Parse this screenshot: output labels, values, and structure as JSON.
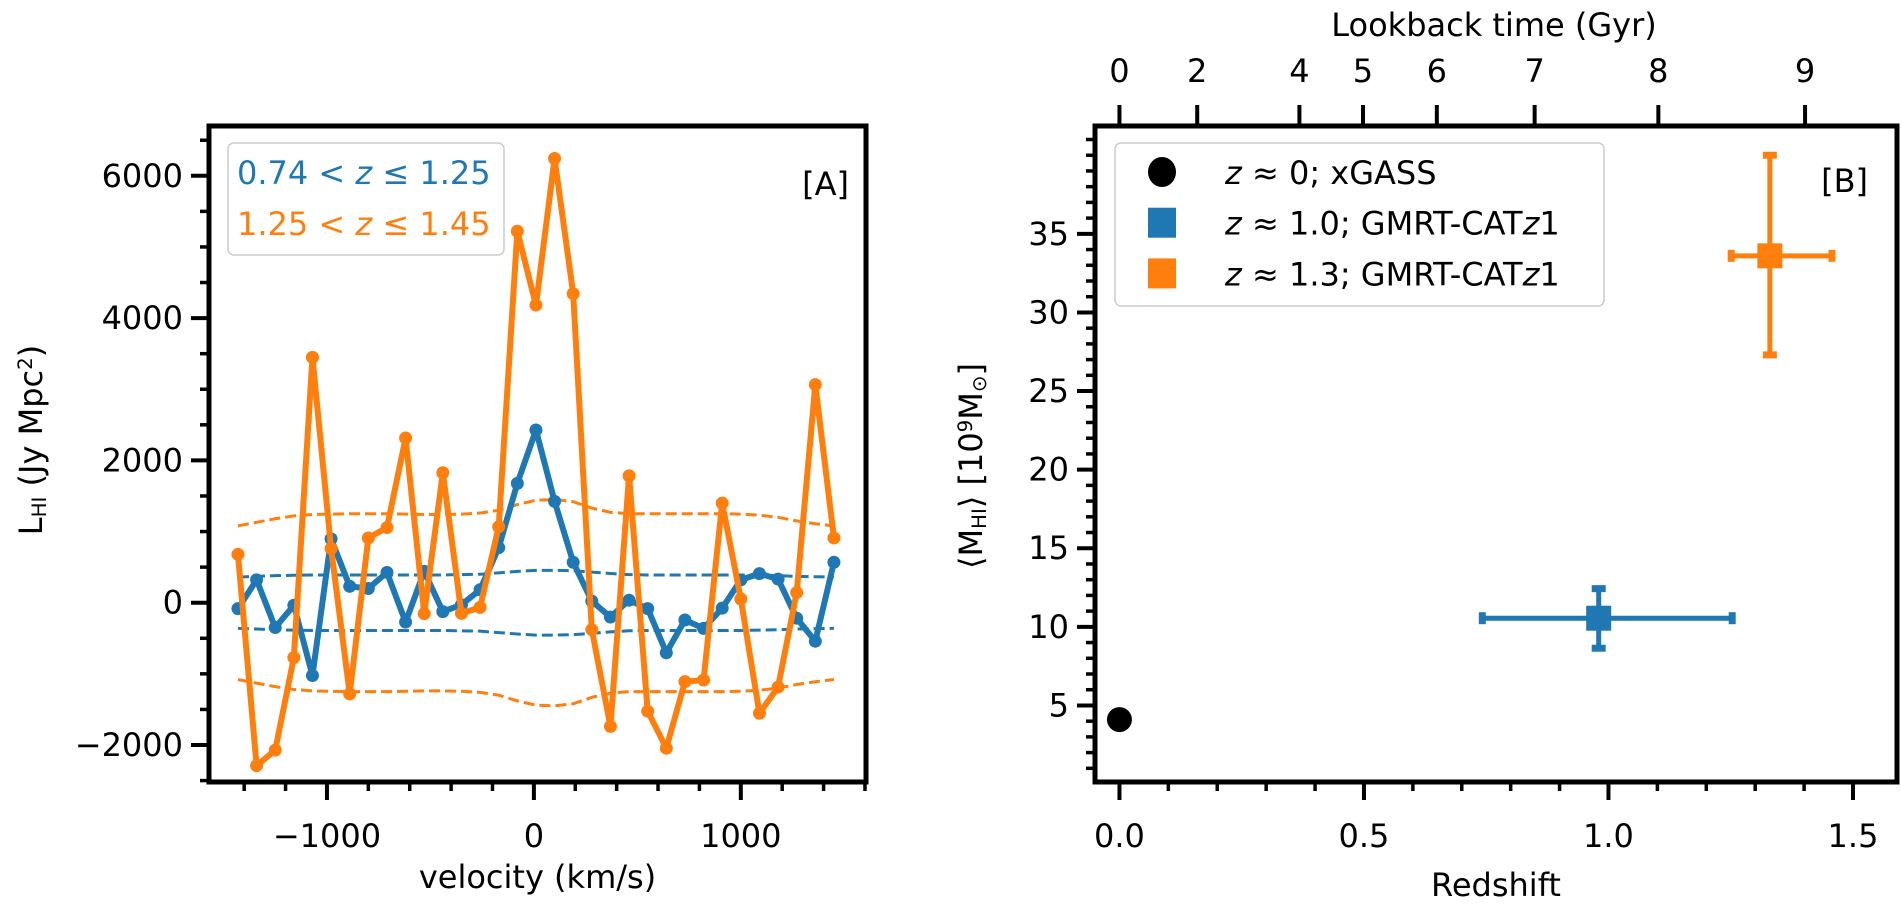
{
  "chart_data": [
    {
      "panel": "[A]",
      "type": "line",
      "xlabel": "velocity (km/s)",
      "ylabel": "L_{HI}  (Jy Mpc^{2})",
      "xlim": [
        -1570,
        1605
      ],
      "ylim": [
        -2520,
        6700
      ],
      "xticks": [
        -1000,
        0,
        1000
      ],
      "xtick_labels": [
        "−1000",
        "0",
        "1000"
      ],
      "xminor_step": 200,
      "yticks": [
        -2000,
        0,
        2000,
        4000,
        6000
      ],
      "ytick_labels": [
        "−2000",
        "0",
        "2000",
        "4000",
        "6000"
      ],
      "yminor_step": 500,
      "grid": false,
      "legend_placement": "top-left",
      "x": [
        -1430,
        -1340,
        -1250,
        -1160,
        -1070,
        -980,
        -890,
        -800,
        -710,
        -620,
        -530,
        -440,
        -350,
        -260,
        -170,
        -80,
        10,
        100,
        190,
        280,
        370,
        460,
        550,
        640,
        730,
        820,
        910,
        1000,
        1090,
        1180,
        1270,
        1360,
        1450
      ],
      "series": [
        {
          "name": "0.74 < z ≤ 1.25",
          "color": "#1f77b4",
          "values": [
            -83,
            321,
            -349,
            -36,
            -1023,
            897,
            230,
            200,
            425,
            -272,
            440,
            -125,
            -30,
            182,
            773,
            1677,
            2428,
            1424,
            568,
            22,
            -202,
            35,
            -83,
            -703,
            -243,
            -361,
            -77,
            321,
            409,
            332,
            -218,
            -541,
            568
          ],
          "noise_band": [
            360,
            370,
            380,
            385,
            390,
            390,
            390,
            390,
            390,
            390,
            390,
            390,
            395,
            400,
            420,
            440,
            455,
            455,
            450,
            430,
            410,
            395,
            390,
            390,
            390,
            390,
            390,
            390,
            385,
            380,
            370,
            365,
            360
          ]
        },
        {
          "name": "1.25 < z ≤ 1.45",
          "color": "#ff7f0e",
          "values": [
            680,
            -2290,
            -2072,
            -772,
            3448,
            762,
            -1281,
            909,
            1056,
            2314,
            -154,
            1826,
            -150,
            -66,
            1068,
            5221,
            4183,
            6243,
            4343,
            -379,
            -1738,
            1783,
            -1525,
            -2045,
            -1110,
            -1086,
            1400,
            52,
            -1554,
            -1186,
            142,
            3065,
            910
          ],
          "noise_band": [
            1080,
            1130,
            1180,
            1220,
            1240,
            1245,
            1250,
            1250,
            1250,
            1245,
            1240,
            1240,
            1245,
            1260,
            1300,
            1380,
            1440,
            1450,
            1420,
            1330,
            1270,
            1250,
            1250,
            1250,
            1250,
            1250,
            1250,
            1245,
            1230,
            1200,
            1150,
            1110,
            1080
          ]
        }
      ]
    },
    {
      "panel": "[B]",
      "type": "scatter",
      "xlabel": "Redshift",
      "ylabel": "⟨M_{HI}⟩ [10^{9}M_{⊙}]",
      "top_xlabel": "Lookback time (Gyr)",
      "xlim": [
        -0.05,
        1.59
      ],
      "ylim": [
        0.13,
        41.86
      ],
      "xticks": [
        0.0,
        0.5,
        1.0,
        1.5
      ],
      "xtick_labels": [
        "0.0",
        "0.5",
        "1.0",
        "1.5"
      ],
      "xminor_step": 0.1,
      "yticks": [
        5,
        10,
        15,
        20,
        25,
        30,
        35
      ],
      "ytick_labels": [
        "5",
        "10",
        "15",
        "20",
        "25",
        "30",
        "35"
      ],
      "yminor_step": 1,
      "top_ticks": [
        {
          "label": "0",
          "redshift": 0.0
        },
        {
          "label": "2",
          "redshift": 0.159
        },
        {
          "label": "4",
          "redshift": 0.368
        },
        {
          "label": "5",
          "redshift": 0.498
        },
        {
          "label": "6",
          "redshift": 0.649
        },
        {
          "label": "7",
          "redshift": 0.849
        },
        {
          "label": "8",
          "redshift": 1.102
        },
        {
          "label": "9",
          "redshift": 1.402
        }
      ],
      "grid": false,
      "legend_placement": "top-left",
      "series": [
        {
          "name": "z ≈ 0; xGASS",
          "color": "#000000",
          "marker": "circle",
          "x": 0.0,
          "y": 4.1
        },
        {
          "name": "z ≈ 1.0; GMRT-CATz1",
          "color": "#1f77b4",
          "marker": "square",
          "x": 0.98,
          "y": 10.55,
          "x_range": [
            0.742,
            1.253
          ],
          "y_range": [
            8.64,
            12.43
          ]
        },
        {
          "name": "z ≈ 1.3; GMRT-CATz1",
          "color": "#ff7f0e",
          "marker": "square",
          "x": 1.33,
          "y": 33.6,
          "x_range": [
            1.251,
            1.457
          ],
          "y_range": [
            27.3,
            40.0
          ]
        }
      ]
    }
  ]
}
